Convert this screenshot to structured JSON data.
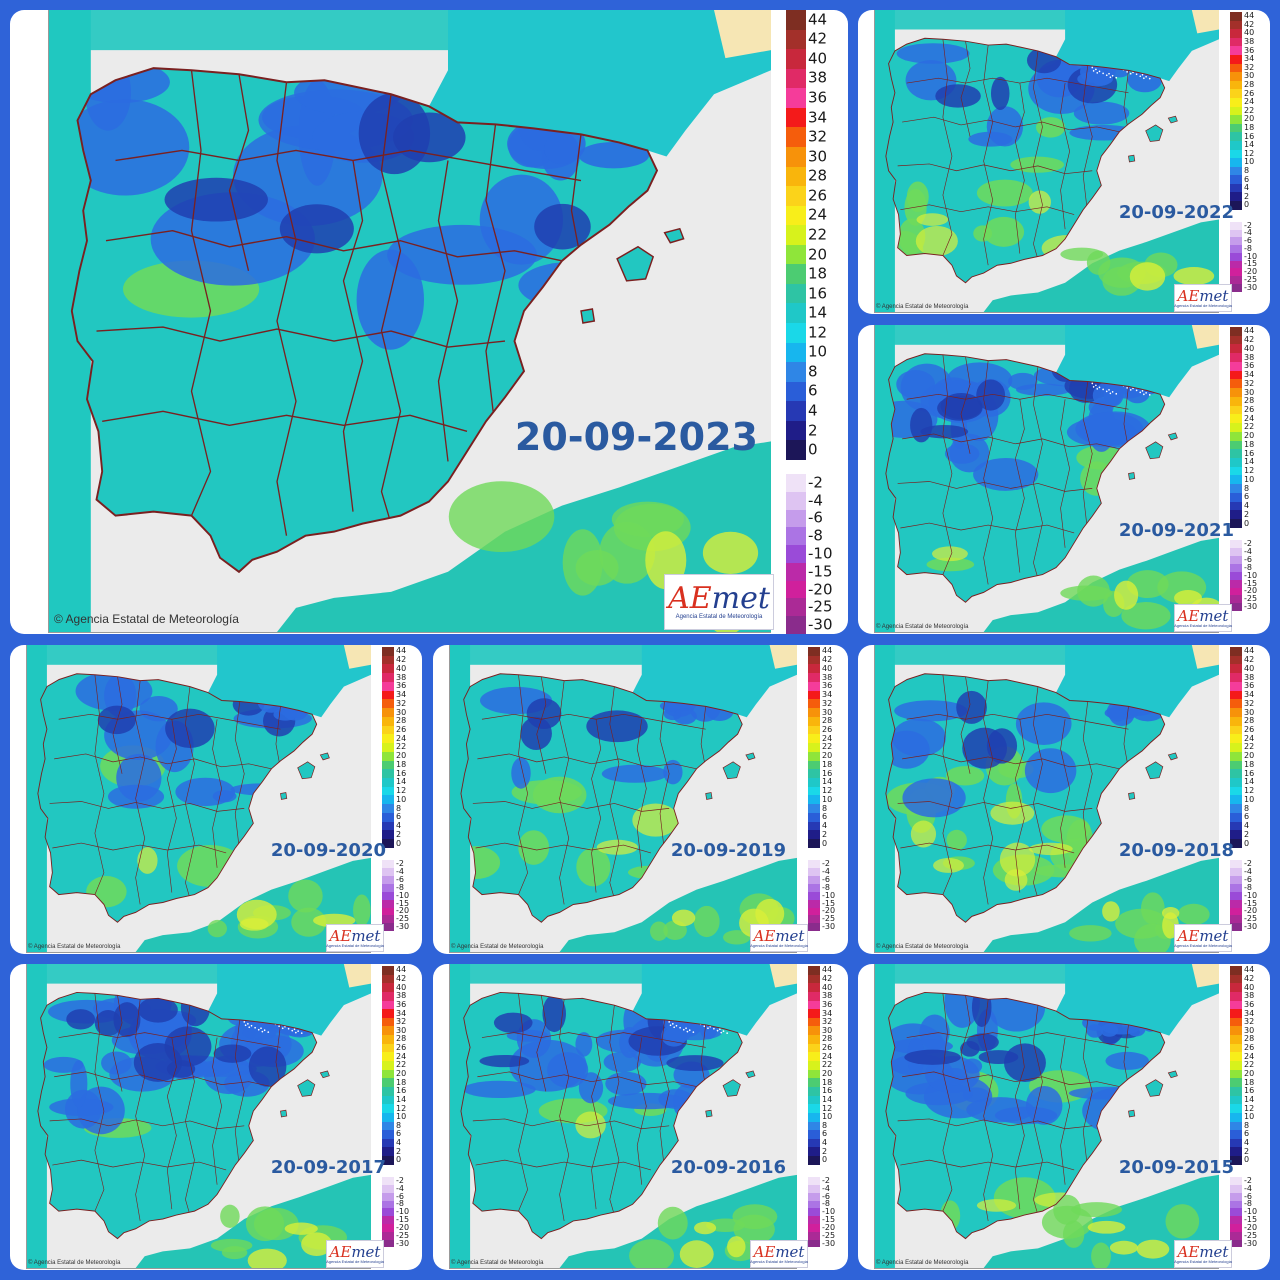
{
  "credit": "Agencia Estatal de Meteorología",
  "logo": {
    "a": "A",
    "e": "E",
    "rest": "met",
    "sub": "Agencia Estatal de Meteorología"
  },
  "legend": {
    "positive": [
      {
        "v": "44",
        "c": "#7e2e22"
      },
      {
        "v": "42",
        "c": "#a3302a"
      },
      {
        "v": "40",
        "c": "#c8283c"
      },
      {
        "v": "38",
        "c": "#e02a66"
      },
      {
        "v": "36",
        "c": "#f53c9a"
      },
      {
        "v": "34",
        "c": "#f41a1a"
      },
      {
        "v": "32",
        "c": "#f55d0c"
      },
      {
        "v": "30",
        "c": "#f7920a"
      },
      {
        "v": "28",
        "c": "#f9b50c"
      },
      {
        "v": "26",
        "c": "#fbd31a"
      },
      {
        "v": "24",
        "c": "#f8ee1a"
      },
      {
        "v": "22",
        "c": "#d7f21c"
      },
      {
        "v": "20",
        "c": "#8fe53a"
      },
      {
        "v": "18",
        "c": "#4ccc72"
      },
      {
        "v": "16",
        "c": "#2ec4a4"
      },
      {
        "v": "14",
        "c": "#1fc8c8"
      },
      {
        "v": "12",
        "c": "#1ad8e8"
      },
      {
        "v": "10",
        "c": "#17b6ee"
      },
      {
        "v": "8",
        "c": "#2f86e6"
      },
      {
        "v": "6",
        "c": "#2a5ed8"
      },
      {
        "v": "4",
        "c": "#2639b4"
      },
      {
        "v": "2",
        "c": "#1f1d88"
      },
      {
        "v": "0",
        "c": "#1c1658"
      }
    ],
    "negative": [
      {
        "v": "-2",
        "c": "#efe2f7"
      },
      {
        "v": "-4",
        "c": "#dec4f2"
      },
      {
        "v": "-6",
        "c": "#c59ceb"
      },
      {
        "v": "-8",
        "c": "#ab74e4"
      },
      {
        "v": "-10",
        "c": "#9a4bd8"
      },
      {
        "v": "-15",
        "c": "#bb2aa8"
      },
      {
        "v": "-20",
        "c": "#d0209c"
      },
      {
        "v": "-25",
        "c": "#ab2a96"
      },
      {
        "v": "-30",
        "c": "#8a2c8c"
      }
    ]
  },
  "colors": {
    "land": "#22c7c1",
    "sea_grey": "#ebebeb",
    "atlantic": "#20c8c0",
    "france": "#22c6cc",
    "africa": "#25c4b5",
    "border": "#7a2020",
    "cold": "#2b6ce0",
    "very_cold": "#2040b0",
    "warm": "#6fda5a",
    "hot": "#d8ef3a",
    "sandy": "#f6e6b4"
  },
  "panels": [
    {
      "date": "20-09-2023",
      "cold": 1.0,
      "very_cold": 0.6,
      "warm": 0.1,
      "snow": 0
    },
    {
      "date": "20-09-2022",
      "cold": 0.7,
      "very_cold": 0.5,
      "warm": 0.9,
      "snow": 1
    },
    {
      "date": "20-09-2021",
      "cold": 1.6,
      "very_cold": 1.0,
      "warm": 0.3,
      "snow": 1
    },
    {
      "date": "20-09-2020",
      "cold": 0.8,
      "very_cold": 0.5,
      "warm": 0.3,
      "snow": 0
    },
    {
      "date": "20-09-2019",
      "cold": 0.3,
      "very_cold": 0.4,
      "warm": 0.6,
      "snow": 0
    },
    {
      "date": "20-09-2018",
      "cold": 0.4,
      "very_cold": 0.4,
      "warm": 1.4,
      "snow": 0
    },
    {
      "date": "20-09-2017",
      "cold": 2.0,
      "very_cold": 1.4,
      "warm": 0.1,
      "snow": 1
    },
    {
      "date": "20-09-2016",
      "cold": 1.4,
      "very_cold": 0.8,
      "warm": 0.2,
      "snow": 1
    },
    {
      "date": "20-09-2015",
      "cold": 1.7,
      "very_cold": 1.0,
      "warm": 0.4,
      "snow": 0
    }
  ]
}
